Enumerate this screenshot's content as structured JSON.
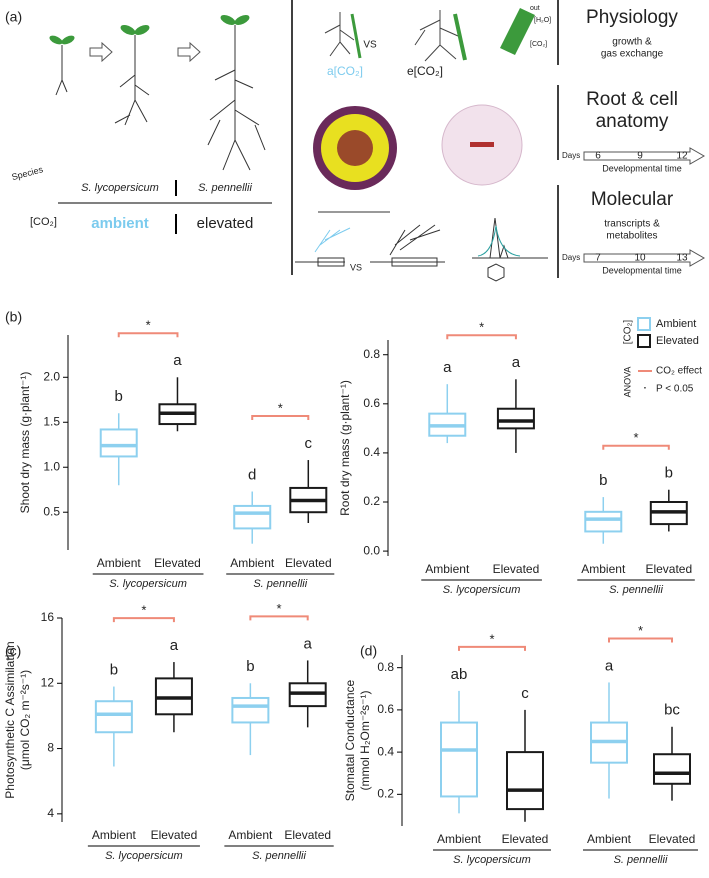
{
  "panel_a": {
    "label": "(a)",
    "species": "Species",
    "species_names": [
      "S. lycopersicum",
      "S. pennellii"
    ],
    "co2": "[CO₂]",
    "co2_levels": [
      "ambient",
      "elevated"
    ],
    "vs": "VS",
    "root_labels": [
      "a[CO₂]",
      "e[CO₂]"
    ],
    "leaf_labels": [
      "out",
      "[H₂O]",
      "[CO₂]"
    ],
    "sections": [
      {
        "title": [
          "Physiology"
        ],
        "subtitle": [
          "growth &",
          "gas exchange"
        ]
      },
      {
        "title": [
          "Root & cell",
          "anatomy"
        ],
        "days": "Days",
        "ticks": [
          6,
          9,
          12
        ],
        "axis_label": "Developmental time"
      },
      {
        "title": [
          "Molecular"
        ],
        "subtitle": [
          "transcripts &",
          "metabolites"
        ],
        "days": "Days",
        "ticks": [
          7,
          10,
          13
        ],
        "axis_label": "Developmental time"
      }
    ]
  },
  "chart_data": [
    {
      "type": "box",
      "panel": "(b)",
      "ylabel": [
        "Shoot dry mass (g·plant⁻¹)"
      ],
      "ylim": [
        0.08,
        2.47
      ],
      "yticks": [
        0.5,
        {
          "value": 1,
          "label": "1.0"
        },
        1.5,
        {
          "value": 2,
          "label": "2.0"
        }
      ],
      "categories": [
        "Ambient",
        "Elevated",
        "Ambient",
        "Elevated"
      ],
      "groups": [
        "S. lycopersicum",
        "S. pennellii"
      ],
      "significance": [
        "*",
        "*"
      ],
      "bracket_color": "#ef8a78",
      "series": [
        {
          "name": "Ambient",
          "color": "#8dd0ef"
        },
        {
          "name": "Elevated",
          "color": "#1a1a1a"
        }
      ],
      "boxes": [
        {
          "min": 0.8,
          "q1": 1.12,
          "median": 1.24,
          "q3": 1.42,
          "max": 1.6,
          "letter": "b"
        },
        {
          "min": 1.4,
          "q1": 1.48,
          "median": 1.6,
          "q3": 1.7,
          "max": 2.0,
          "letter": "a"
        },
        {
          "min": 0.15,
          "q1": 0.32,
          "median": 0.49,
          "q3": 0.57,
          "max": 0.73,
          "letter": "d"
        },
        {
          "min": 0.38,
          "q1": 0.5,
          "median": 0.63,
          "q3": 0.77,
          "max": 1.08,
          "letter": "c"
        }
      ]
    },
    {
      "type": "box",
      "panel": "",
      "ylabel": [
        "Root dry mass (g·plant⁻¹)"
      ],
      "ylim": [
        -0.02,
        0.86
      ],
      "yticks": [
        {
          "value": 0,
          "label": "0.0"
        },
        0.2,
        0.4,
        0.6,
        0.8
      ],
      "categories": [
        "Ambient",
        "Elevated",
        "Ambient",
        "Elevated"
      ],
      "groups": [
        "S. lycopersicum",
        "S. pennellii"
      ],
      "significance": [
        "*",
        "*"
      ],
      "bracket_color": "#ef8a78",
      "series": [
        {
          "name": "Ambient",
          "color": "#8dd0ef"
        },
        {
          "name": "Elevated",
          "color": "#1a1a1a"
        }
      ],
      "legend": {
        "title": "[CO₂]",
        "test": "ANOVA",
        "effect": "CO₂ effect",
        "marker": "·",
        "threshold": "P < 0.05"
      },
      "boxes": [
        {
          "min": 0.44,
          "q1": 0.47,
          "median": 0.51,
          "q3": 0.56,
          "max": 0.68,
          "letter": "a"
        },
        {
          "min": 0.4,
          "q1": 0.5,
          "median": 0.53,
          "q3": 0.58,
          "max": 0.7,
          "letter": "a"
        },
        {
          "min": 0.03,
          "q1": 0.08,
          "median": 0.13,
          "q3": 0.16,
          "max": 0.22,
          "letter": "b"
        },
        {
          "min": 0.08,
          "q1": 0.11,
          "median": 0.16,
          "q3": 0.2,
          "max": 0.25,
          "letter": "b"
        }
      ]
    },
    {
      "type": "box",
      "panel": "(c)",
      "ylabel": [
        "Photosynthetic C Assimilation",
        "(μmol CO₂ m⁻²s⁻¹)"
      ],
      "ylim": [
        3.5,
        16
      ],
      "yticks": [
        4,
        8,
        12,
        16
      ],
      "categories": [
        "Ambient",
        "Elevated",
        "Ambient",
        "Elevated"
      ],
      "groups": [
        "S. lycopersicum",
        "S. pennellii"
      ],
      "significance": [
        "*",
        "*"
      ],
      "bracket_color": "#ef8a78",
      "series": [
        {
          "name": "Ambient",
          "color": "#8dd0ef"
        },
        {
          "name": "Elevated",
          "color": "#1a1a1a"
        }
      ],
      "boxes": [
        {
          "min": 6.9,
          "q1": 9.0,
          "median": 10.1,
          "q3": 10.9,
          "max": 11.8,
          "letter": "b"
        },
        {
          "min": 9.0,
          "q1": 10.1,
          "median": 11.1,
          "q3": 12.3,
          "max": 13.3,
          "letter": "a"
        },
        {
          "min": 7.6,
          "q1": 9.6,
          "median": 10.6,
          "q3": 11.1,
          "max": 12.0,
          "letter": "b"
        },
        {
          "min": 9.3,
          "q1": 10.6,
          "median": 11.4,
          "q3": 12.0,
          "max": 13.4,
          "letter": "a"
        }
      ]
    },
    {
      "type": "box",
      "panel": "(d)",
      "ylabel": [
        "Stomatal Conductance",
        "(mmol H₂Om⁻²s⁻¹)"
      ],
      "ylim": [
        0.05,
        0.86
      ],
      "yticks": [
        0.2,
        0.4,
        0.6,
        0.8
      ],
      "categories": [
        "Ambient",
        "Elevated",
        "Ambient",
        "Elevated"
      ],
      "groups": [
        "S. lycopersicum",
        "S. pennellii"
      ],
      "significance": [
        "*",
        "*"
      ],
      "bracket_color": "#ef8a78",
      "series": [
        {
          "name": "Ambient",
          "color": "#8dd0ef"
        },
        {
          "name": "Elevated",
          "color": "#1a1a1a"
        }
      ],
      "boxes": [
        {
          "min": 0.11,
          "q1": 0.19,
          "median": 0.41,
          "q3": 0.54,
          "max": 0.69,
          "letter": "ab"
        },
        {
          "min": 0.07,
          "q1": 0.13,
          "median": 0.22,
          "q3": 0.4,
          "max": 0.6,
          "letter": "c"
        },
        {
          "min": 0.18,
          "q1": 0.35,
          "median": 0.45,
          "q3": 0.54,
          "max": 0.73,
          "letter": "a"
        },
        {
          "min": 0.17,
          "q1": 0.25,
          "median": 0.3,
          "q3": 0.39,
          "max": 0.52,
          "letter": "bc"
        }
      ]
    }
  ]
}
